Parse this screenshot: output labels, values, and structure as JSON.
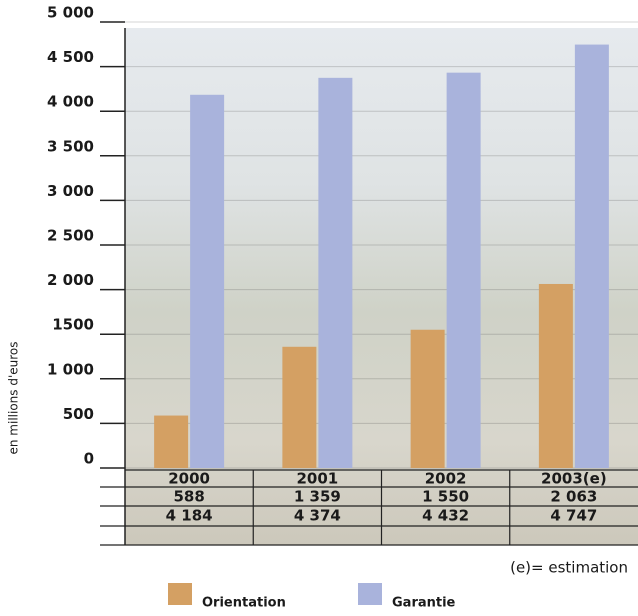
{
  "chart_data": {
    "type": "bar",
    "categories": [
      "2000",
      "2001",
      "2002",
      "2003(e)"
    ],
    "series": [
      {
        "name": "Orientation",
        "color": "#d4a063",
        "values": [
          588,
          1359,
          1550,
          2063
        ],
        "value_labels": [
          "588",
          "1 359",
          "1 550",
          "2 063"
        ]
      },
      {
        "name": "Garantie",
        "color": "#a9b3dc",
        "values": [
          4184,
          4374,
          4432,
          4747
        ],
        "value_labels": [
          "4 184",
          "4 374",
          "4 432",
          "4 747"
        ]
      }
    ],
    "ylim": [
      0,
      5000
    ],
    "yticks": [
      0,
      500,
      {
        "value": 1000,
        "label": "1 000"
      },
      1500,
      {
        "value": 2000,
        "label": "2 000"
      },
      {
        "value": 2500,
        "label": "2 500"
      },
      {
        "value": 3000,
        "label": "3 000"
      },
      {
        "value": 3500,
        "label": "3 500"
      },
      {
        "value": 4000,
        "label": "4 000"
      },
      {
        "value": 4500,
        "label": "4 500"
      },
      {
        "value": 5000,
        "label": "5 000"
      }
    ],
    "y_label": "en millions d'euros",
    "annotation": "(e)= estimation",
    "grid": true
  }
}
